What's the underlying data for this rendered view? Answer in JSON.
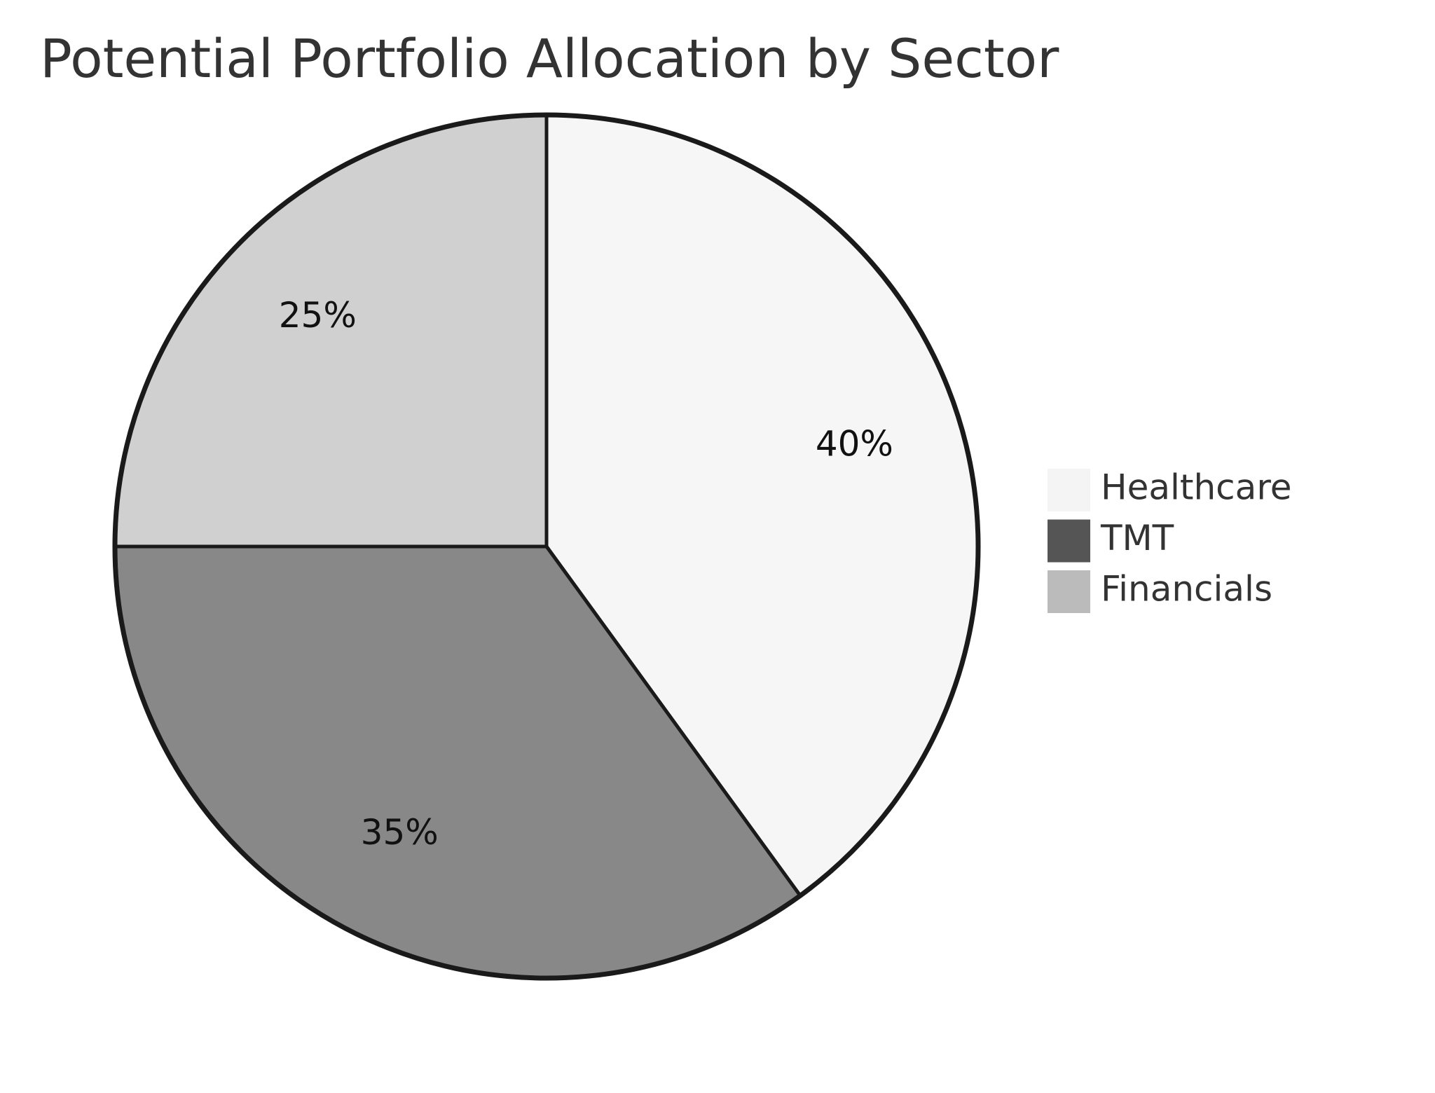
{
  "chart_data": {
    "type": "pie",
    "title": "Potential Portfolio Allocation by Sector",
    "categories": [
      "Healthcare",
      "TMT",
      "Financials"
    ],
    "values": [
      40,
      35,
      25
    ],
    "value_labels": [
      "40%",
      "35%",
      "25%"
    ],
    "colors": [
      "#f6f6f6",
      "#888888",
      "#d0d0d0"
    ],
    "legend_colors": [
      "#f4f4f4",
      "#555555",
      "#bbbbbb"
    ],
    "legend": "right"
  }
}
